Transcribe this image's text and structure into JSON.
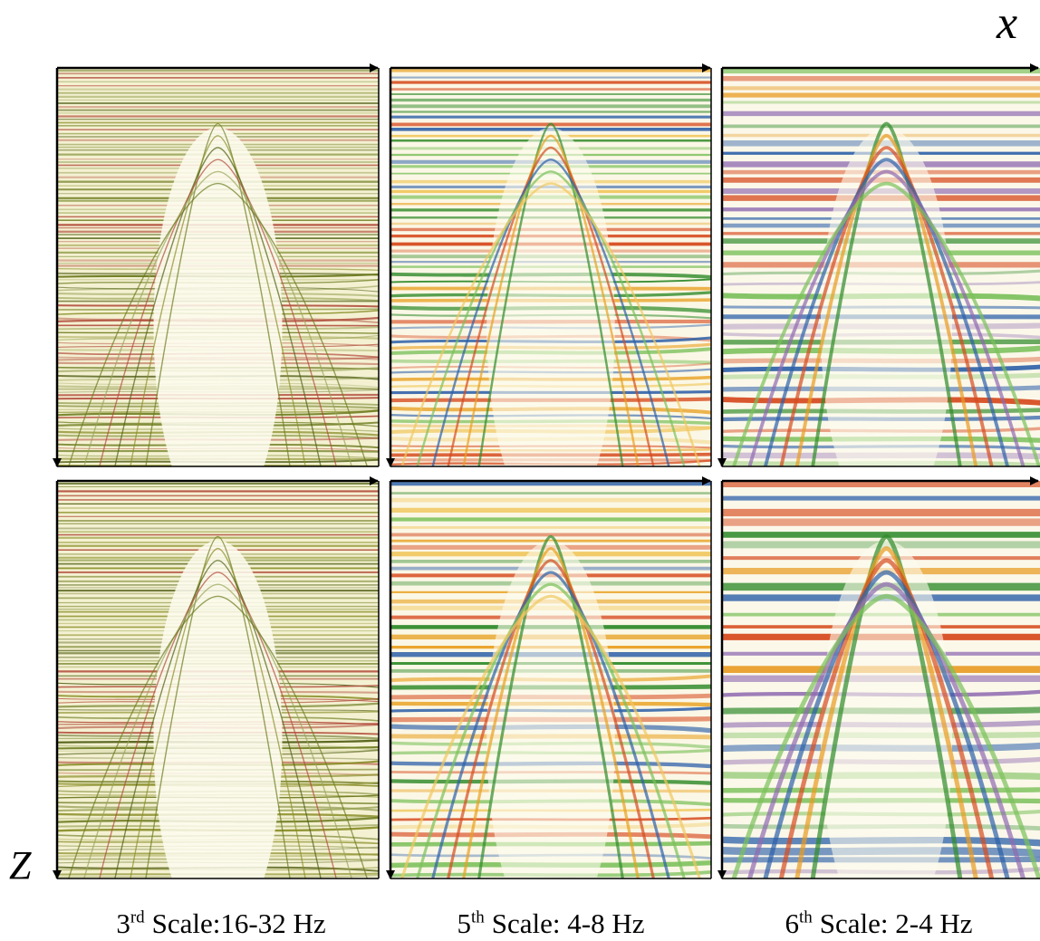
{
  "axis_x": "x",
  "axis_z": "Z",
  "captions": [
    {
      "number": "3",
      "suffix": "rd",
      "text": "Scale:16-32 Hz"
    },
    {
      "number": "5",
      "suffix": "th",
      "text": "Scale: 4-8 Hz"
    },
    {
      "number": "6",
      "suffix": "th",
      "text": "Scale: 2-4 Hz"
    }
  ]
}
